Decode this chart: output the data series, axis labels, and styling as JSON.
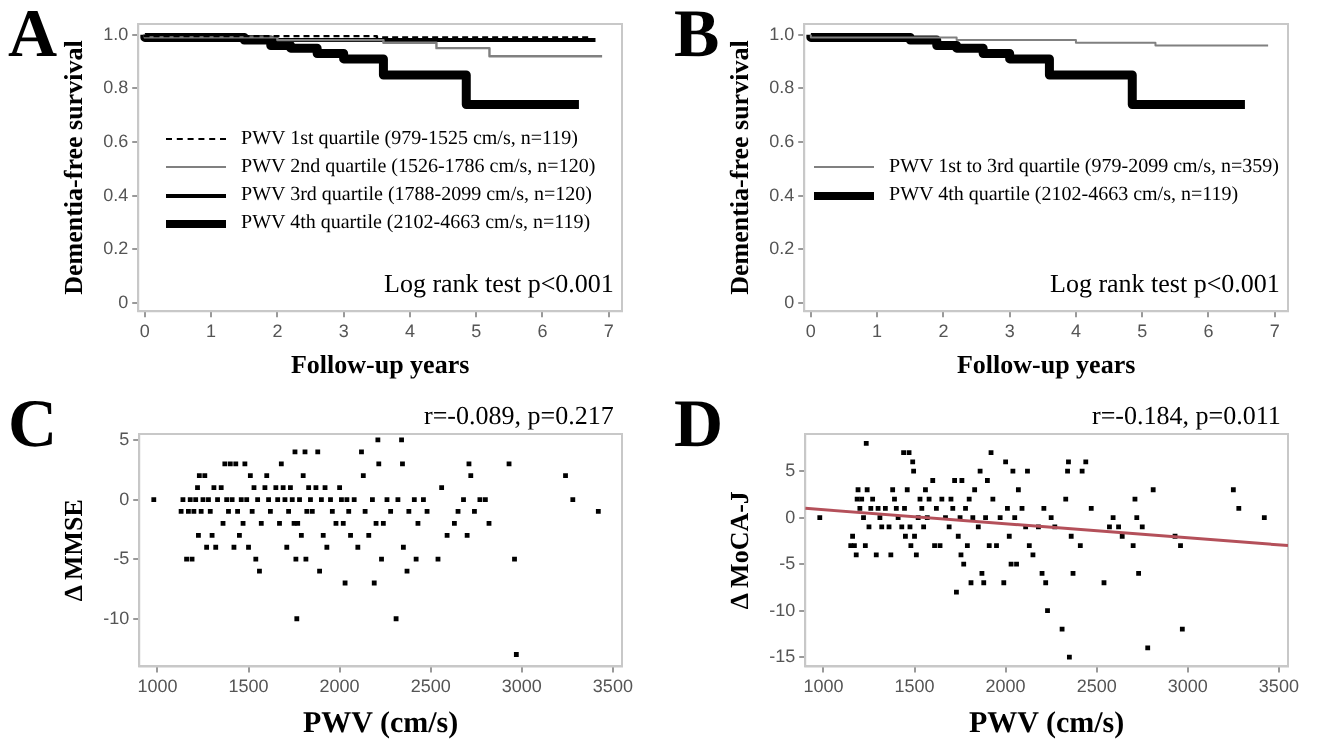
{
  "chart_data": [
    {
      "type": "step",
      "title": "A",
      "xlabel": "Follow-up years",
      "ylabel": "Dementia-free survival",
      "xlim": [
        -0.1,
        7.2
      ],
      "ylim": [
        -0.03,
        1.04
      ],
      "xticks": [
        0,
        1,
        2,
        3,
        4,
        5,
        6,
        7
      ],
      "yticks": [
        0,
        0.2,
        0.4,
        0.6,
        0.8,
        {
          "value": 1,
          "label": "1.0"
        }
      ],
      "legend": "center",
      "annotations": [
        "Log rank test p<0.001"
      ],
      "series": [
        {
          "name": "PWV 1st quartile (979-1525 cm/s, n=119)",
          "color": "#000000",
          "line_style": "dashed",
          "x": [
            0,
            3.5,
            4.4,
            6.7
          ],
          "values": [
            1,
            0.995,
            0.99,
            0.99
          ]
        },
        {
          "name": "PWV 2nd quartile (1526-1786 cm/s, n=120)",
          "color": "#808080",
          "x": [
            0,
            2.0,
            3.6,
            4.4,
            5.2,
            5.35,
            6.9
          ],
          "values": [
            1,
            0.99,
            0.98,
            0.97,
            0.95,
            0.92,
            0.92
          ]
        },
        {
          "name": "PWV 3rd quartile (1788-2099 cm/s, n=120)",
          "color": "#000000",
          "x": [
            0,
            1.8,
            3.0,
            6.8
          ],
          "values": [
            1,
            0.99,
            0.98,
            0.98
          ]
        },
        {
          "name": "PWV 4th quartile (2102-4663 cm/s, n=119)",
          "color": "#000000",
          "x": [
            0,
            1.5,
            1.9,
            2.2,
            2.6,
            3.0,
            3.6,
            4.85,
            6.2,
            6.55
          ],
          "values": [
            1,
            0.99,
            0.98,
            0.96,
            0.95,
            0.93,
            0.91,
            0.85,
            0.74,
            0.74
          ]
        }
      ]
    },
    {
      "type": "step",
      "title": "B",
      "xlabel": "Follow-up years",
      "ylabel": "Dementia-free survival",
      "xlim": [
        -0.1,
        7.2
      ],
      "ylim": [
        -0.03,
        1.04
      ],
      "xticks": [
        0,
        1,
        2,
        3,
        4,
        5,
        6,
        7
      ],
      "yticks": [
        0,
        0.2,
        0.4,
        0.6,
        0.8,
        {
          "value": 1,
          "label": "1.0"
        }
      ],
      "legend": "center",
      "annotations": [
        "Log rank test p<0.001"
      ],
      "series": [
        {
          "name": "PWV 1st to 3rd quartile (979-2099 cm/s, n=359)",
          "color": "#808080",
          "x": [
            0,
            2.2,
            4.0,
            5.2,
            5.4,
            6.9
          ],
          "values": [
            1,
            0.99,
            0.98,
            0.97,
            0.96,
            0.96
          ]
        },
        {
          "name": "PWV 4th quartile (2102-4663 cm/s, n=119)",
          "color": "#000000",
          "x": [
            0,
            1.5,
            1.9,
            2.2,
            2.6,
            3.0,
            3.6,
            4.85,
            6.2,
            6.55
          ],
          "values": [
            1,
            0.99,
            0.98,
            0.96,
            0.95,
            0.93,
            0.91,
            0.85,
            0.74,
            0.74
          ]
        }
      ]
    },
    {
      "type": "scatter",
      "title": "C",
      "xlabel": "PWV (cm/s)",
      "ylabel": "Δ MMSE",
      "xlim": [
        900,
        3550
      ],
      "ylim": [
        -14,
        5.5
      ],
      "xticks": [
        1000,
        1500,
        2000,
        2500,
        3000,
        3500
      ],
      "yticks": [
        -10,
        -5,
        0,
        5
      ],
      "marker": "square",
      "annotations": [
        "r=-0.089, p=0.217"
      ],
      "series": [
        {
          "color": "#000000",
          "x": [
            980,
            1130,
            1140,
            1160,
            1170,
            1180,
            1190,
            1200,
            1210,
            1220,
            1225,
            1230,
            1240,
            1250,
            1260,
            1270,
            1280,
            1290,
            1300,
            1310,
            1320,
            1330,
            1350,
            1360,
            1370,
            1380,
            1390,
            1400,
            1410,
            1420,
            1430,
            1440,
            1450,
            1460,
            1470,
            1480,
            1490,
            1500,
            1510,
            1520,
            1530,
            1540,
            1550,
            1560,
            1570,
            1590,
            1600,
            1610,
            1620,
            1650,
            1660,
            1670,
            1680,
            1690,
            1700,
            1710,
            1720,
            1730,
            1740,
            1750,
            1755,
            1760,
            1765,
            1770,
            1780,
            1790,
            1800,
            1810,
            1815,
            1820,
            1830,
            1840,
            1850,
            1870,
            1880,
            1890,
            1900,
            1910,
            1920,
            1930,
            1950,
            1960,
            1980,
            2000,
            2010,
            2020,
            2030,
            2040,
            2050,
            2060,
            2080,
            2100,
            2120,
            2130,
            2140,
            2160,
            2180,
            2190,
            2200,
            2210,
            2215,
            2230,
            2240,
            2260,
            2280,
            2310,
            2320,
            2340,
            2345,
            2350,
            2370,
            2380,
            2410,
            2420,
            2430,
            2460,
            2480,
            2540,
            2560,
            2590,
            2630,
            2650,
            2680,
            2700,
            2710,
            2720,
            2740,
            2770,
            2800,
            2820,
            2930,
            2960,
            2970,
            3240,
            3280,
            3420
          ],
          "values": [
            0,
            -1,
            0,
            -5,
            -1,
            0,
            -5,
            -1,
            0,
            1,
            -3,
            2,
            -1,
            0,
            2,
            -4,
            0,
            -1,
            -3,
            1,
            -4,
            0,
            1,
            -2,
            3,
            0,
            -1,
            3,
            0,
            -4,
            3,
            -1,
            -3,
            0,
            -2,
            3,
            0,
            -4,
            2,
            -1,
            1,
            -5,
            0,
            -6,
            -2,
            1,
            2,
            0,
            -1,
            1,
            0,
            -2,
            3,
            1,
            0,
            -4,
            -1,
            1,
            0,
            -2,
            4,
            -5,
            -10,
            -2,
            0,
            -3,
            2,
            4,
            -5,
            -1,
            1,
            0,
            -1,
            1,
            4,
            -6,
            0,
            -3,
            1,
            -4,
            0,
            -1,
            -2,
            1,
            0,
            -2,
            -7,
            0,
            -1,
            -3,
            0,
            -4,
            4,
            2,
            -1,
            -3,
            0,
            -7,
            -2,
            5,
            3,
            -5,
            -2,
            0,
            -1,
            -10,
            0,
            5,
            3,
            -4,
            -6,
            -1,
            0,
            -5,
            -2,
            0,
            -1,
            -5,
            1,
            -3,
            -2,
            -1,
            0,
            -3,
            3,
            2,
            -1,
            0,
            0,
            -2,
            3,
            -5,
            -13,
            2,
            0,
            -1
          ]
        }
      ]
    },
    {
      "type": "scatter",
      "title": "D",
      "xlabel": "PWV (cm/s)",
      "ylabel": "Δ MoCA-J",
      "xlim": [
        900,
        3550
      ],
      "ylim": [
        -16,
        9
      ],
      "xticks": [
        1000,
        1500,
        2000,
        2500,
        3000,
        3500
      ],
      "yticks": [
        -15,
        -10,
        -5,
        0,
        5
      ],
      "marker": "square",
      "annotations": [
        "r=-0.184, p=0.011"
      ],
      "series": [
        {
          "color": "#000000",
          "x": [
            980,
            1150,
            1160,
            1170,
            1180,
            1185,
            1190,
            1200,
            1210,
            1220,
            1230,
            1235,
            1240,
            1250,
            1260,
            1270,
            1290,
            1300,
            1310,
            1320,
            1340,
            1360,
            1370,
            1380,
            1390,
            1400,
            1410,
            1430,
            1440,
            1445,
            1450,
            1460,
            1470,
            1475,
            1480,
            1490,
            1495,
            1500,
            1510,
            1520,
            1530,
            1540,
            1550,
            1560,
            1570,
            1580,
            1600,
            1610,
            1620,
            1640,
            1650,
            1670,
            1690,
            1700,
            1710,
            1720,
            1730,
            1740,
            1750,
            1755,
            1760,
            1770,
            1780,
            1790,
            1800,
            1810,
            1820,
            1830,
            1850,
            1860,
            1870,
            1880,
            1890,
            1900,
            1910,
            1920,
            1930,
            1950,
            1970,
            1990,
            2000,
            2010,
            2020,
            2030,
            2040,
            2050,
            2060,
            2070,
            2090,
            2110,
            2120,
            2130,
            2150,
            2180,
            2200,
            2210,
            2220,
            2230,
            2250,
            2270,
            2310,
            2330,
            2340,
            2345,
            2350,
            2360,
            2370,
            2410,
            2420,
            2440,
            2470,
            2540,
            2570,
            2590,
            2620,
            2640,
            2700,
            2710,
            2720,
            2730,
            2750,
            2780,
            2810,
            2930,
            2960,
            2970,
            3250,
            3280,
            3420
          ],
          "values": [
            0,
            -3,
            -2,
            -3,
            -4,
            2,
            3,
            1,
            2,
            0,
            -3,
            8,
            3,
            -1,
            1,
            2,
            -4,
            1,
            0,
            -1,
            1,
            -1,
            -4,
            3,
            2,
            1,
            0,
            -1,
            7,
            1,
            -2,
            3,
            7,
            -1,
            -3,
            6,
            5,
            -2,
            -4,
            0,
            2,
            1,
            -1,
            3,
            0,
            2,
            4,
            -3,
            1,
            -3,
            2,
            0,
            -1,
            2,
            1,
            4,
            -8,
            -2,
            0,
            -4,
            4,
            -5,
            1,
            -3,
            2,
            -7,
            0,
            3,
            -1,
            5,
            -6,
            -7,
            0,
            4,
            -3,
            7,
            2,
            -3,
            0,
            -7,
            6,
            1,
            -2,
            -5,
            5,
            0,
            -5,
            3,
            1,
            -1,
            5,
            -3,
            -4,
            -1,
            -6,
            1,
            -7,
            -10,
            0,
            -1,
            -12,
            2,
            5,
            6,
            -15,
            -2,
            -6,
            -3,
            5,
            6,
            1,
            -7,
            -1,
            0,
            -1,
            -2,
            -3,
            2,
            0,
            -6,
            -1,
            -14,
            3,
            -2,
            -3,
            -12,
            3,
            1,
            0
          ]
        },
        {
          "type": "line",
          "marker": "none",
          "color": "#b4505a",
          "x": [
            900,
            3550
          ],
          "values": [
            1,
            -3
          ]
        }
      ]
    }
  ]
}
